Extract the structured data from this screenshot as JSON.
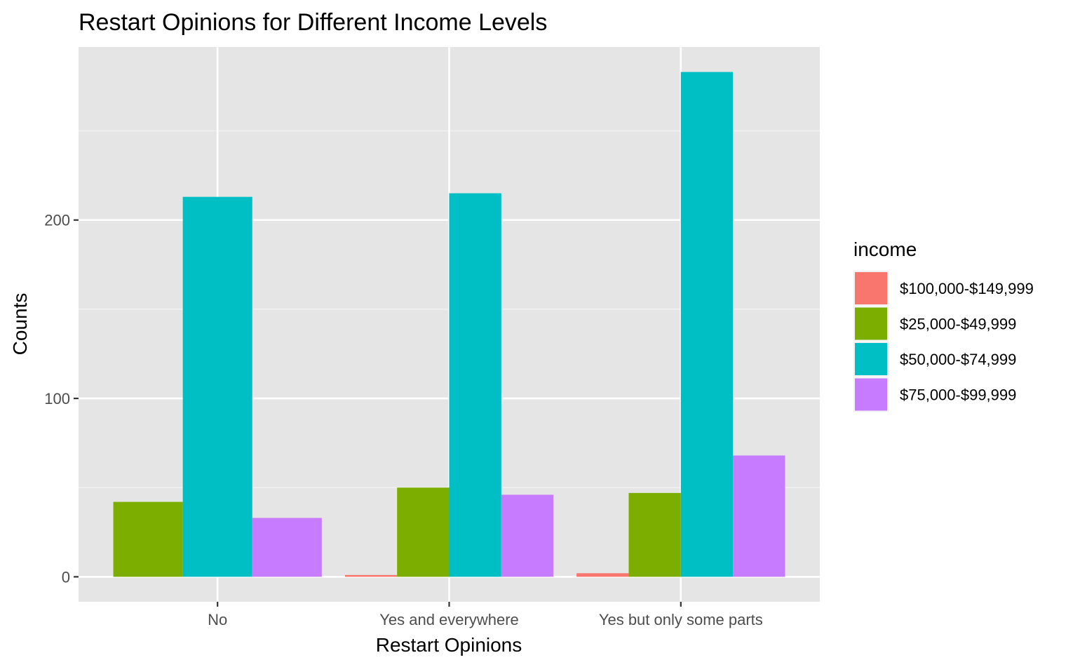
{
  "chart_data": {
    "type": "bar",
    "title": "Restart Opinions for Different Income Levels",
    "xlabel": "Restart Opinions",
    "ylabel": "Counts",
    "categories": [
      "No",
      "Yes and everywhere",
      "Yes but only some parts"
    ],
    "yticks": [
      "0",
      "100",
      "200"
    ],
    "ylim": [
      -14,
      297
    ],
    "grid": true,
    "legend": {
      "title": "income",
      "position": "right"
    },
    "series": [
      {
        "name": "$100,000-$149,999",
        "color": "#F8766D",
        "values": [
          0,
          1,
          2
        ]
      },
      {
        "name": "$25,000-$49,999",
        "color": "#7CAE00",
        "values": [
          42,
          50,
          47
        ]
      },
      {
        "name": "$50,000-$74,999",
        "color": "#00BFC4",
        "values": [
          213,
          215,
          283
        ]
      },
      {
        "name": "$75,000-$99,999",
        "color": "#C77CFF",
        "values": [
          33,
          46,
          68
        ]
      }
    ]
  }
}
